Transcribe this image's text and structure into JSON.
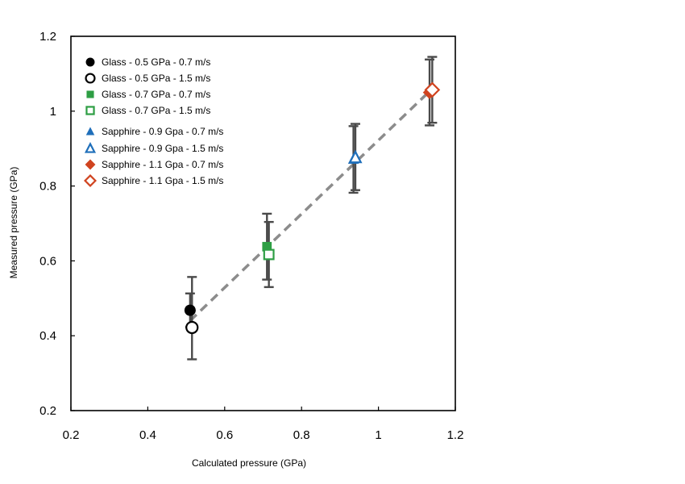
{
  "chart_data": {
    "type": "scatter",
    "title": "",
    "xlabel": "Calculated pressure (GPa)",
    "ylabel": "Measured pressure  (GPa)",
    "xlim": [
      0.2,
      1.2
    ],
    "ylim": [
      0.2,
      1.2
    ],
    "xticks": [
      "0.2",
      "0.4",
      "0.6",
      "0.8",
      "1",
      "1.2"
    ],
    "yticks": [
      "0.2",
      "0.4",
      "0.6",
      "0.8",
      "1",
      "1.2"
    ],
    "grid": false,
    "legend_position": "top-left",
    "trend_line": {
      "style": "dashed",
      "color": "#8c8c8c",
      "from": [
        0.51,
        0.44
      ],
      "to": [
        1.14,
        1.06
      ]
    },
    "series": [
      {
        "name": "Glass - 0.5 GPa - 0.7 m/s",
        "marker": "circle",
        "filled": true,
        "color": "#000000",
        "points": [
          {
            "x": 0.51,
            "y": 0.468,
            "err_low": 0.045,
            "err_high": 0.045
          }
        ]
      },
      {
        "name": "Glass - 0.5 GPa - 1.5 m/s",
        "marker": "circle",
        "filled": false,
        "color": "#000000",
        "points": [
          {
            "x": 0.515,
            "y": 0.422,
            "err_low": 0.085,
            "err_high": 0.135
          }
        ]
      },
      {
        "name": "Glass - 0.7 GPa - 0.7 m/s",
        "marker": "square",
        "filled": true,
        "color": "#2e9e44",
        "points": [
          {
            "x": 0.71,
            "y": 0.638,
            "err_low": 0.088,
            "err_high": 0.088
          }
        ]
      },
      {
        "name": "Glass - 0.7 GPa - 1.5 m/s",
        "marker": "square",
        "filled": false,
        "color": "#2e9e44",
        "points": [
          {
            "x": 0.715,
            "y": 0.617,
            "err_low": 0.087,
            "err_high": 0.087
          }
        ]
      },
      {
        "name": "Sapphire - 0.9 Gpa - 0.7 m/s",
        "marker": "triangle",
        "filled": true,
        "color": "#1f6fba",
        "points": [
          {
            "x": 0.935,
            "y": 0.872,
            "err_low": 0.09,
            "err_high": 0.088
          }
        ]
      },
      {
        "name": "Sapphire - 0.9 Gpa - 1.5 m/s",
        "marker": "triangle",
        "filled": false,
        "color": "#1f6fba",
        "points": [
          {
            "x": 0.94,
            "y": 0.876,
            "err_low": 0.087,
            "err_high": 0.09
          }
        ]
      },
      {
        "name": "Sapphire - 1.1 Gpa - 0.7 m/s",
        "marker": "diamond",
        "filled": true,
        "color": "#d0431f",
        "points": [
          {
            "x": 1.133,
            "y": 1.05,
            "err_low": 0.088,
            "err_high": 0.088
          }
        ]
      },
      {
        "name": "Sapphire - 1.1 Gpa - 1.5 m/s",
        "marker": "diamond",
        "filled": false,
        "color": "#d0431f",
        "points": [
          {
            "x": 1.14,
            "y": 1.057,
            "err_low": 0.088,
            "err_high": 0.088
          }
        ]
      }
    ]
  }
}
